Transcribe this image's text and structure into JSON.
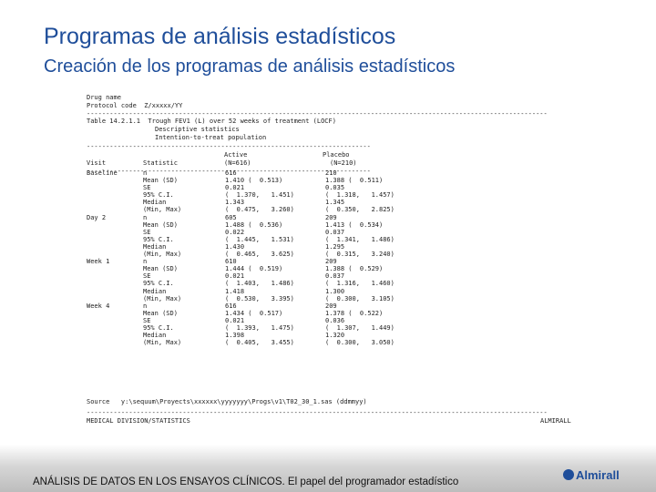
{
  "slide": {
    "title": "Programas de análisis estadísticos",
    "subtitle": "Creación de los programas de análisis estadísticos",
    "footer_text": "ANÁLISIS DE DATOS EN LOS ENSAYOS CLÍNICOS. El papel del programador estadístico",
    "logo_text": "Almirall"
  },
  "doc": {
    "drug_name": "Drug name",
    "protocol_code": "Protocol code  Z/xxxxx/YY",
    "table_title": "Table 14.2.1.1  Trough FEV1 (L) over 52 weeks of treatment (LOCF)",
    "desc_line": "Descriptive statistics",
    "population_line": "Intention-to-treat population",
    "col_visit": "Visit",
    "col_statistic": "Statistic",
    "col_active": "Active",
    "col_active_n": "(N=616)",
    "col_placebo": "Placebo",
    "col_placebo_n": "(N=210)",
    "source_line": "Source   y:\\sequum\\Proyects\\xxxxxx\\yyyyyyy\\Progs\\v1\\T02_30_1.sas (ddmmyy)",
    "medical_division": "MEDICAL DIVISION/STATISTICS",
    "company": "ALMIRALL"
  },
  "rows": [
    [
      "Baseline",
      "n",
      "616",
      "210"
    ],
    [
      "",
      "Mean (SD)",
      "1.410 (  0.513)",
      "1.388 (  0.511)"
    ],
    [
      "",
      "SE",
      "0.021",
      "0.035"
    ],
    [
      "",
      "95% C.I.",
      "(  1.370,   1.451)",
      "(  1.318,   1.457)"
    ],
    [
      "",
      "Median",
      "1.343",
      "1.345"
    ],
    [
      "",
      "(Min, Max)",
      "(  0.475,   3.260)",
      "(  0.350,   2.825)"
    ],
    [
      "Day 2",
      "n",
      "605",
      "209"
    ],
    [
      "",
      "Mean (SD)",
      "1.488 (  0.536)",
      "1.413 (  0.534)"
    ],
    [
      "",
      "SE",
      "0.022",
      "0.037"
    ],
    [
      "",
      "95% C.I.",
      "(  1.445,   1.531)",
      "(  1.341,   1.486)"
    ],
    [
      "",
      "Median",
      "1.430",
      "1.295"
    ],
    [
      "",
      "(Min, Max)",
      "(  0.465,   3.625)",
      "(  0.315,   3.240)"
    ],
    [
      "Week 1",
      "n",
      "610",
      "209"
    ],
    [
      "",
      "Mean (SD)",
      "1.444 (  0.519)",
      "1.388 (  0.529)"
    ],
    [
      "",
      "SE",
      "0.021",
      "0.037"
    ],
    [
      "",
      "95% C.I.",
      "(  1.403,   1.486)",
      "(  1.316,   1.460)"
    ],
    [
      "",
      "Median",
      "1.418",
      "1.300"
    ],
    [
      "",
      "(Min, Max)",
      "(  0.530,   3.395)",
      "(  0.300,   3.105)"
    ],
    [
      "Week 4",
      "n",
      "616",
      "209"
    ],
    [
      "",
      "Mean (SD)",
      "1.434 (  0.517)",
      "1.378 (  0.522)"
    ],
    [
      "",
      "SE",
      "0.021",
      "0.036"
    ],
    [
      "",
      "95% C.I.",
      "(  1.393,   1.475)",
      "(  1.307,   1.449)"
    ],
    [
      "",
      "Median",
      "1.398",
      "1.320"
    ],
    [
      "",
      "(Min, Max)",
      "(  0.405,   3.455)",
      "(  0.300,   3.050)"
    ]
  ]
}
